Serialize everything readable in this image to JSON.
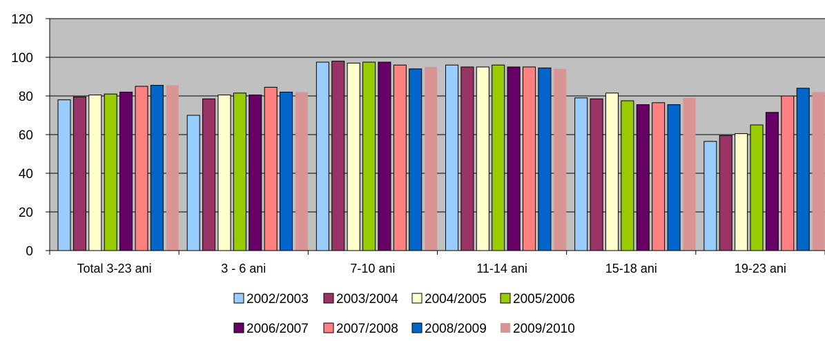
{
  "chart_data": {
    "type": "bar",
    "categories": [
      "Total 3-23 ani",
      "3 - 6 ani",
      "7-10 ani",
      "11-14 ani",
      "15-18 ani",
      "19-23 ani"
    ],
    "series": [
      {
        "name": "2002/2003",
        "color": "#99ccff",
        "values": [
          78,
          70,
          97.5,
          96,
          79,
          56.5
        ]
      },
      {
        "name": "2003/2004",
        "color": "#993366",
        "values": [
          79.5,
          78.5,
          98,
          95,
          78.5,
          59.5
        ]
      },
      {
        "name": "2004/2005",
        "color": "#ffffcc",
        "values": [
          80.5,
          80.5,
          97,
          95,
          81.5,
          60.5
        ]
      },
      {
        "name": "2005/2006",
        "color": "#99cc00",
        "values": [
          81,
          81.5,
          97.5,
          96,
          77.5,
          65
        ]
      },
      {
        "name": "2006/2007",
        "color": "#660066",
        "values": [
          82,
          80.5,
          97.5,
          95,
          75.5,
          71.5
        ]
      },
      {
        "name": "2007/2008",
        "color": "#ff8080",
        "values": [
          85,
          84.5,
          96,
          95,
          76.5,
          80
        ]
      },
      {
        "name": "2008/2009",
        "color": "#0066cc",
        "values": [
          85.5,
          82,
          94,
          94.5,
          75.5,
          84
        ]
      },
      {
        "name": "2009/2010",
        "color": "#d99594",
        "values": [
          85.5,
          82,
          95,
          94,
          79,
          82
        ]
      }
    ],
    "y_ticks": [
      "0",
      "20",
      "40",
      "60",
      "80",
      "100",
      "120"
    ],
    "ylim": [
      0,
      120
    ],
    "grid": true,
    "plot_background": "#c0c0c0",
    "legend_position": "bottom"
  }
}
